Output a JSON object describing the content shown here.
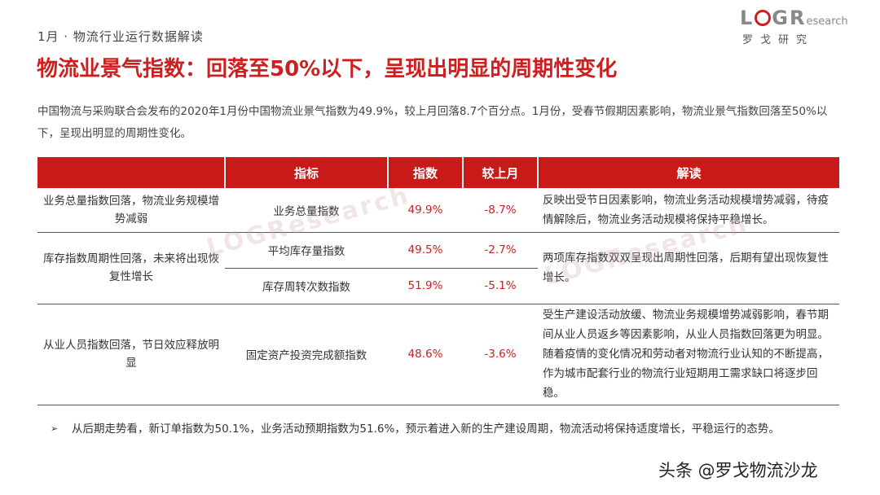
{
  "header": {
    "subtitle": "1月 · 物流行业运行数据解读",
    "logo_main": "LOGR",
    "logo_sub": "esearch",
    "logo_cn": "罗戈研究"
  },
  "title": "物流业景气指数：回落至50%以下，呈现出明显的周期性变化",
  "intro": "中国物流与采购联合会发布的2020年1月份中国物流业景气指数为49.9%，较上月回落8.7个百分点。1月份，受春节假期因素影响，物流业景气指数回落至50%以下，呈现出明显的周期性变化。",
  "table": {
    "headers": [
      "",
      "指标",
      "指数",
      "较上月",
      "解读"
    ],
    "groups": [
      {
        "category": "业务总量指数回落，物流业务规模增势减弱",
        "note": "反映出受节日因素影响，物流业务活动规模增势减弱，待疫情解除后，物流业务活动规模将保持平稳增长。",
        "rows": [
          {
            "indicator": "业务总量指数",
            "index": "49.9%",
            "change": "-8.7%"
          }
        ]
      },
      {
        "category": "库存指数周期性回落，未来将出现恢复性增长",
        "note": "两项库存指数双双呈现出周期性回落，后期有望出现恢复性增长。",
        "rows": [
          {
            "indicator": "平均库存量指数",
            "index": "49.5%",
            "change": "-2.7%"
          },
          {
            "indicator": "库存周转次数指数",
            "index": "51.9%",
            "change": "-5.1%"
          }
        ]
      },
      {
        "category": "从业人员指数回落，节日效应释放明显",
        "note": "受生产建设活动放缓、物流业务规模增势减弱影响，春节期间从业人员返乡等因素影响，从业人员指数回落更为明显。随着疫情的变化情况和劳动者对物流行业认知的不断提高，作为城市配套行业的物流行业短期用工需求缺口将逐步回稳。",
        "rows": [
          {
            "indicator": "固定资产投资完成额指数",
            "index": "48.6%",
            "change": "-3.6%"
          }
        ]
      }
    ]
  },
  "bottom_note": {
    "bullet": "➢",
    "text": "从后期走势看，新订单指数为50.1%，业务活动预期指数为51.6%，预示着进入新的生产建设周期，物流活动将保持适度增长，平稳运行的态势。"
  },
  "watermark": "LOGResearch",
  "footer_brand": "头条 @罗戈物流沙龙",
  "colors": {
    "accent": "#cc1f1f",
    "header_bg": "#c91a1a"
  }
}
